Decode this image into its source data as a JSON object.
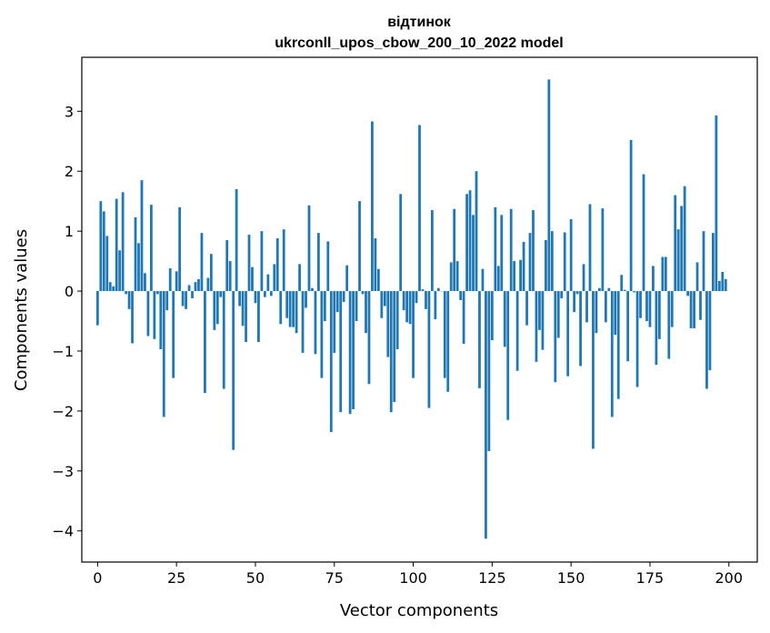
{
  "chart_data": {
    "type": "bar",
    "title_line1": "відтинок",
    "title_line2": "ukrconll_upos_cbow_200_10_2022 model",
    "xlabel": "Vector components",
    "ylabel": "Components values",
    "xlim": [
      -5,
      209
    ],
    "ylim": [
      -4.52,
      3.9
    ],
    "xticks": [
      0,
      25,
      50,
      75,
      100,
      125,
      150,
      175,
      200
    ],
    "xtick_labels": [
      "0",
      "25",
      "50",
      "75",
      "100",
      "125",
      "150",
      "175",
      "200"
    ],
    "yticks": [
      3,
      2,
      1,
      0,
      -1,
      -2,
      -3,
      -4
    ],
    "ytick_labels": [
      "3",
      "2",
      "1",
      "0",
      "−1",
      "−2",
      "−3",
      "−4"
    ],
    "grid": false,
    "bar_color": "#1f77b4",
    "values": [
      -0.57,
      1.5,
      1.33,
      0.92,
      0.15,
      0.08,
      1.54,
      0.68,
      1.65,
      -0.05,
      -0.3,
      -0.87,
      1.23,
      0.8,
      1.85,
      0.3,
      -0.75,
      1.44,
      -0.8,
      -0.05,
      -0.97,
      -2.1,
      -0.32,
      0.38,
      -1.45,
      0.33,
      1.4,
      -0.25,
      -0.3,
      0.1,
      -0.12,
      0.15,
      0.2,
      0.97,
      -1.7,
      0.22,
      0.62,
      -0.65,
      -0.55,
      -0.1,
      -1.63,
      0.85,
      0.5,
      -2.65,
      1.7,
      -0.25,
      -0.58,
      -0.85,
      0.94,
      0.4,
      -0.2,
      -0.85,
      1.0,
      -0.1,
      0.28,
      -0.08,
      0.45,
      0.88,
      -0.55,
      1.03,
      -0.45,
      -0.6,
      -0.6,
      -0.7,
      0.45,
      -1.03,
      -0.28,
      1.43,
      0.05,
      -1.05,
      0.97,
      -1.45,
      -0.5,
      0.83,
      -2.35,
      -1.03,
      -0.35,
      -2.02,
      -0.18,
      0.43,
      -2.05,
      -1.97,
      -0.5,
      1.5,
      -0.05,
      -0.7,
      -1.55,
      2.83,
      0.88,
      0.37,
      -0.45,
      -0.25,
      -1.1,
      -2.02,
      -1.85,
      -0.97,
      1.62,
      -0.32,
      -0.52,
      -0.55,
      -1.45,
      -0.2,
      2.77,
      0.03,
      -0.3,
      -1.95,
      1.35,
      -0.47,
      0.05,
      0.0,
      -1.45,
      -1.68,
      0.48,
      1.37,
      0.5,
      -0.15,
      -0.88,
      1.62,
      1.68,
      1.27,
      2.0,
      -1.62,
      0.37,
      -4.13,
      -2.67,
      -0.82,
      1.4,
      0.42,
      1.27,
      -0.93,
      -2.15,
      1.37,
      0.5,
      -1.33,
      0.52,
      0.82,
      -0.57,
      0.97,
      1.35,
      -1.18,
      -0.65,
      -0.98,
      0.85,
      3.53,
      1.0,
      -1.52,
      -0.78,
      -0.12,
      0.98,
      -1.42,
      1.2,
      -0.35,
      -0.05,
      -1.25,
      0.45,
      -0.52,
      1.45,
      -2.63,
      -0.7,
      0.05,
      1.38,
      -0.52,
      0.05,
      -2.1,
      -0.73,
      -1.8,
      0.27,
      0.02,
      -1.17,
      2.52,
      -0.02,
      -1.6,
      -0.45,
      1.95,
      -0.5,
      -0.6,
      0.42,
      -1.23,
      -0.8,
      0.57,
      0.57,
      -1.13,
      -0.6,
      1.6,
      1.03,
      1.42,
      1.75,
      -0.08,
      -0.62,
      -0.62,
      0.48,
      -0.48,
      1.0,
      -1.63,
      -1.32,
      0.97,
      2.93,
      0.17,
      0.32,
      0.2
    ]
  }
}
